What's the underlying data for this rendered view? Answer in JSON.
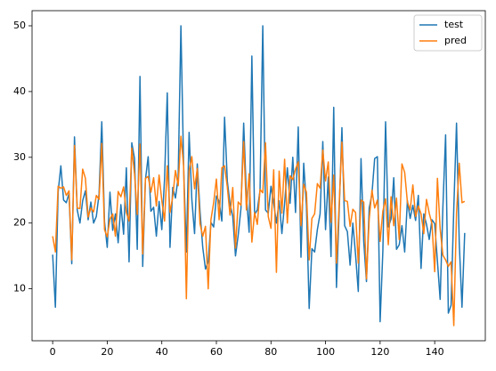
{
  "chart_data": {
    "type": "line",
    "x": [
      0,
      1,
      2,
      3,
      4,
      5,
      6,
      7,
      8,
      9,
      10,
      11,
      12,
      13,
      14,
      15,
      16,
      17,
      18,
      19,
      20,
      21,
      22,
      23,
      24,
      25,
      26,
      27,
      28,
      29,
      30,
      31,
      32,
      33,
      34,
      35,
      36,
      37,
      38,
      39,
      40,
      41,
      42,
      43,
      44,
      45,
      46,
      47,
      48,
      49,
      50,
      51,
      52,
      53,
      54,
      55,
      56,
      57,
      58,
      59,
      60,
      61,
      62,
      63,
      64,
      65,
      66,
      67,
      68,
      69,
      70,
      71,
      72,
      73,
      74,
      75,
      76,
      77,
      78,
      79,
      80,
      81,
      82,
      83,
      84,
      85,
      86,
      87,
      88,
      89,
      90,
      91,
      92,
      93,
      94,
      95,
      96,
      97,
      98,
      99,
      100,
      101,
      102,
      103,
      104,
      105,
      106,
      107,
      108,
      109,
      110,
      111,
      112,
      113,
      114,
      115,
      116,
      117,
      118,
      119,
      120,
      121,
      122,
      123,
      124,
      125,
      126,
      127,
      128,
      129,
      130,
      131,
      132,
      133,
      134,
      135,
      136,
      137,
      138,
      139,
      140,
      141,
      142,
      143,
      144,
      145,
      146,
      147,
      148,
      149,
      150,
      151
    ],
    "series": [
      {
        "name": "test",
        "color": "#1f77b4",
        "values": [
          15.2,
          7.2,
          24.7,
          28.7,
          23.5,
          23.1,
          24.5,
          13.8,
          33.1,
          22.0,
          20.0,
          23.4,
          24.9,
          20.5,
          23.2,
          20.0,
          21.0,
          24.4,
          35.4,
          20.2,
          16.3,
          24.7,
          18.9,
          21.4,
          17.0,
          22.8,
          18.3,
          28.4,
          14.1,
          32.2,
          29.8,
          16.0,
          42.3,
          13.4,
          26.6,
          30.1,
          21.8,
          22.4,
          18.0,
          23.3,
          19.0,
          26.7,
          39.8,
          16.3,
          25.4,
          23.8,
          27.0,
          50.0,
          28.4,
          15.6,
          33.8,
          23.6,
          18.4,
          29.0,
          21.8,
          16.3,
          13.0,
          14.1,
          20.1,
          19.4,
          24.1,
          23.3,
          20.3,
          36.1,
          26.4,
          22.9,
          21.0,
          15.0,
          18.2,
          22.2,
          35.2,
          24.1,
          18.6,
          45.4,
          21.3,
          22.0,
          25.0,
          50.0,
          22.0,
          21.5,
          25.6,
          23.0,
          20.0,
          23.4,
          18.4,
          23.0,
          28.4,
          23.0,
          30.0,
          21.6,
          34.6,
          14.8,
          29.1,
          22.6,
          7.0,
          16.1,
          15.6,
          19.0,
          21.4,
          32.4,
          19.0,
          27.0,
          14.9,
          37.6,
          10.2,
          21.9,
          34.5,
          19.6,
          18.7,
          13.6,
          20.0,
          15.2,
          9.6,
          29.8,
          17.2,
          11.1,
          22.3,
          24.4,
          29.8,
          30.1,
          5.0,
          15.7,
          35.4,
          19.4,
          20.6,
          26.9,
          16.0,
          16.7,
          19.6,
          15.6,
          23.4,
          20.7,
          22.7,
          20.4,
          24.2,
          13.1,
          21.4,
          19.8,
          17.5,
          20.5,
          19.9,
          14.2,
          8.4,
          22.4,
          33.4,
          6.3,
          7.5,
          22.3,
          35.2,
          17.0,
          7.2,
          18.5
        ]
      },
      {
        "name": "pred",
        "color": "#ff7f0e",
        "values": [
          18.0,
          15.6,
          25.6,
          25.3,
          25.5,
          24.2,
          24.9,
          14.4,
          31.8,
          22.3,
          22.2,
          28.2,
          26.8,
          20.9,
          22.3,
          21.7,
          24.2,
          23.6,
          32.1,
          19.0,
          17.9,
          20.6,
          21.4,
          18.0,
          24.8,
          24.0,
          25.5,
          21.6,
          20.3,
          31.4,
          27.5,
          21.3,
          32.0,
          15.3,
          26.8,
          27.1,
          24.7,
          26.9,
          22.6,
          27.3,
          23.4,
          20.3,
          28.7,
          21.6,
          24.0,
          28.0,
          25.7,
          33.2,
          28.7,
          8.5,
          28.0,
          30.1,
          25.2,
          28.3,
          19.9,
          18.0,
          19.5,
          10.0,
          20.5,
          23.1,
          26.7,
          20.5,
          28.4,
          28.7,
          25.5,
          21.2,
          25.4,
          16.2,
          23.2,
          22.7,
          32.4,
          22.0,
          27.5,
          17.1,
          21.6,
          19.8,
          25.1,
          24.6,
          32.2,
          21.0,
          19.2,
          28.1,
          12.5,
          27.9,
          21.5,
          29.7,
          20.0,
          27.2,
          26.6,
          28.2,
          29.3,
          19.6,
          25.9,
          24.7,
          14.4,
          20.7,
          21.4,
          26.0,
          25.3,
          31.1,
          26.4,
          29.3,
          20.1,
          27.3,
          13.9,
          22.9,
          32.3,
          23.4,
          23.3,
          19.5,
          22.1,
          21.6,
          13.9,
          23.5,
          23.2,
          11.5,
          20.6,
          25.0,
          22.3,
          23.5,
          17.2,
          21.8,
          23.7,
          16.7,
          24.0,
          19.6,
          23.8,
          17.5,
          29.0,
          27.7,
          23.2,
          22.0,
          25.8,
          21.0,
          22.6,
          21.4,
          18.4,
          23.6,
          21.5,
          19.9,
          12.6,
          26.8,
          19.1,
          15.1,
          14.4,
          13.4,
          14.1,
          4.4,
          21.5,
          29.1,
          23.1,
          23.3
        ]
      }
    ],
    "xlim": [
      -7.55,
      158.55
    ],
    "ylim": [
      2.1,
      52.3
    ],
    "xticks": [
      0,
      20,
      40,
      60,
      80,
      100,
      120,
      140
    ],
    "yticks": [
      10,
      20,
      30,
      40,
      50
    ],
    "legend": "upper right"
  }
}
